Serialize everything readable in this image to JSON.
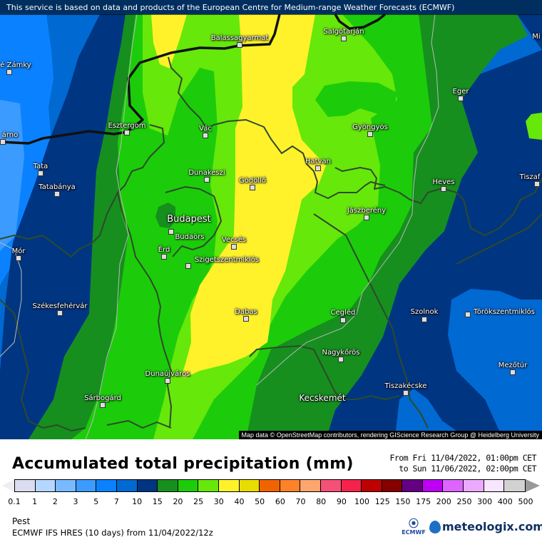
{
  "banner": "This service is based on data and products of the European Centre for Medium-range Weather Forecasts (ECMWF)",
  "attribution": "Map data © OpenStreetMap contributors, rendering GIScience Research Group @ Heidelberg University",
  "cities": [
    "é Zámky",
    "Balassagyarmat",
    "Salgótarján",
    "Mi",
    "Eger",
    "Esztergom",
    "Vác",
    "árno",
    "Gyöngyös",
    "Tata",
    "Dunakeszi",
    "Gödöllő",
    "Hatvan",
    "Tatabánya",
    "Heves",
    "Tiszaf",
    "Budapest",
    "Budaörs",
    "Jászberény",
    "Vecsés",
    "Mór",
    "Érd",
    "Szigetszentmiklós",
    "Székesfehérvár",
    "Dabas",
    "Cegléd",
    "Szolnok",
    "Törökszentmiklós",
    "Nagykőrös",
    "Mezőtúr",
    "Dunaújváros",
    "Tiszakécske",
    "Kecskemét",
    "Sárbogárd"
  ],
  "footer": {
    "title": "Accumulated total precipitation (mm)",
    "from": "From Fri 11/04/2022, 01:00pm CET",
    "to": "to Sun 11/06/2022, 02:00pm CET",
    "location": "Pest",
    "model": "ECMWF IFS HRES (10 days) from  11/04/2022/12z",
    "ecmwf_logo": "ECMWF",
    "brand": "meteologix.com"
  },
  "legend": {
    "ticks": [
      "0.1",
      "1",
      "2",
      "3",
      "5",
      "7",
      "10",
      "15",
      "20",
      "25",
      "30",
      "40",
      "50",
      "60",
      "70",
      "80",
      "90",
      "100",
      "125",
      "150",
      "175",
      "200",
      "250",
      "300",
      "400",
      "500"
    ],
    "colors": [
      "#dcdcf0",
      "#b4d7ff",
      "#78b9ff",
      "#3c9bff",
      "#0a82ff",
      "#0069d2",
      "#003582",
      "#168f1e",
      "#1ccc0a",
      "#66e80a",
      "#fff22a",
      "#e8dc00",
      "#f06400",
      "#ff8228",
      "#ffa56e",
      "#f55078",
      "#f5234b",
      "#be0000",
      "#870000",
      "#640082",
      "#be00f5",
      "#dc64ff",
      "#ebaaff",
      "#f8e6ff",
      "#d2d2d2"
    ]
  }
}
